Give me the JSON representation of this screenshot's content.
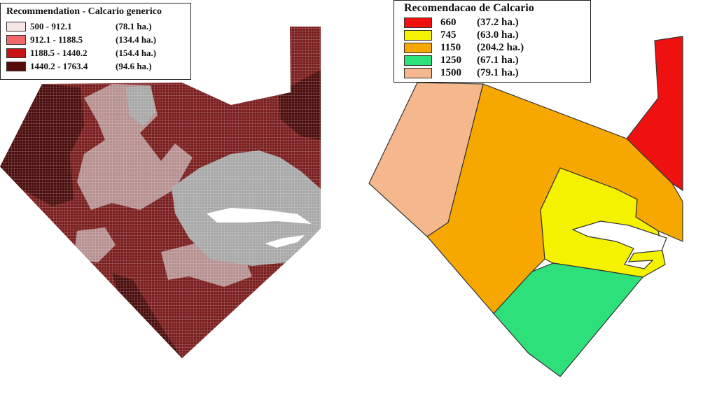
{
  "left_map": {
    "legend": {
      "title": "Recommendation  - Calcario generico",
      "items": [
        {
          "range": "500  - 912.1",
          "area": "(78.1 ha.)",
          "color": "#f7e6e6"
        },
        {
          "range": "912.1  - 1188.5",
          "area": "(134.4 ha.)",
          "color": "#f06868"
        },
        {
          "range": "1188.5  - 1440.2",
          "area": "(154.4 ha.)",
          "color": "#c81414"
        },
        {
          "range": "1440.2  - 1763.4",
          "area": "(94.6 ha.)",
          "color": "#560a0a"
        }
      ]
    },
    "colors": {
      "dark": "#4a0c0c",
      "medium": "#7a1d1d",
      "light": "#b69090",
      "pale": "#a8a8a8",
      "grid": "#ffffff"
    }
  },
  "right_map": {
    "legend": {
      "title": "Recomendacao de Calcario",
      "items": [
        {
          "value": "660",
          "area": "(37.2 ha.)",
          "color": "#ef1010"
        },
        {
          "value": "745",
          "area": "(63.0 ha.)",
          "color": "#f5f200"
        },
        {
          "value": "1150",
          "area": "(204.2 ha.)",
          "color": "#f7a800"
        },
        {
          "value": "1250",
          "area": "(67.1 ha.)",
          "color": "#2ee07a"
        },
        {
          "value": "1500",
          "area": "(79.1 ha.)",
          "color": "#f5b88c"
        }
      ]
    }
  }
}
